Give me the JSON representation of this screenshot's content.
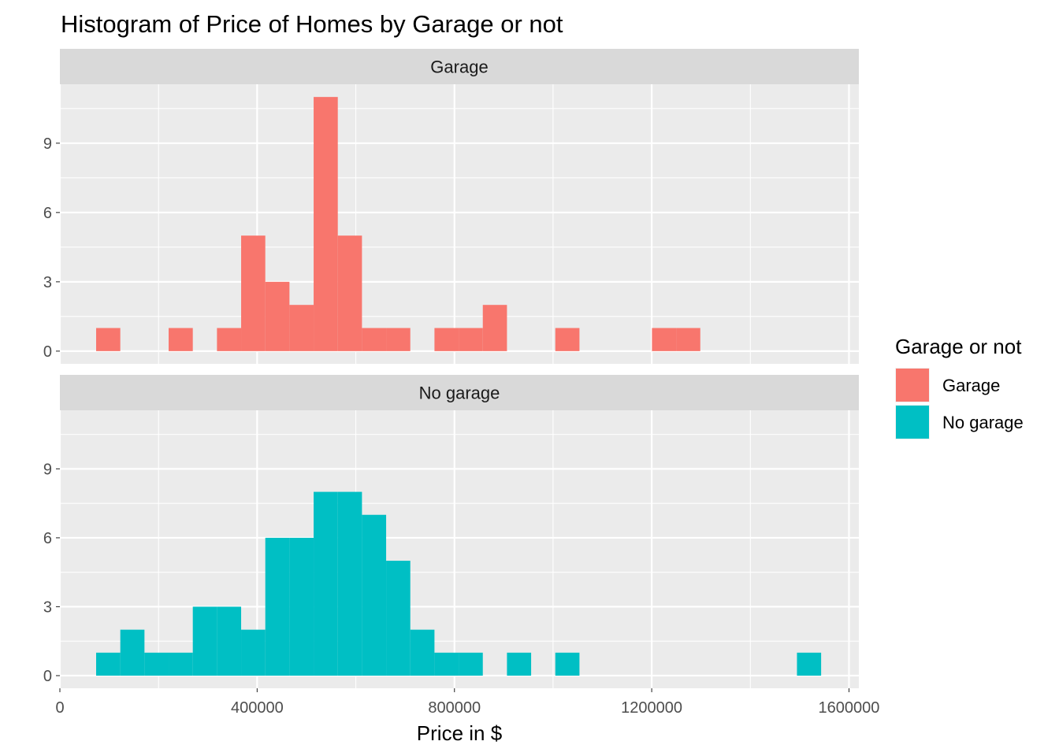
{
  "chart_data": {
    "type": "bar",
    "title": "Histogram of Price of Homes by Garage or not",
    "xlabel": "Price in $",
    "ylabel": "",
    "xlim": [
      0,
      1620000
    ],
    "ylim": [
      -0.55,
      11.55
    ],
    "bin_width": 49000,
    "x_ticks": [
      0,
      400000,
      800000,
      1200000,
      1600000
    ],
    "x_tick_labels": [
      "0",
      "400000",
      "800000",
      "1200000",
      "1600000"
    ],
    "y_ticks": [
      0,
      3,
      6,
      9
    ],
    "y_tick_labels": [
      "0",
      "3",
      "6",
      "9"
    ],
    "grid": true,
    "legend": {
      "title": "Garage or not",
      "position": "right",
      "entries": [
        {
          "label": "Garage",
          "color": "#F8766D"
        },
        {
          "label": "No garage",
          "color": "#00BFC4"
        }
      ]
    },
    "panels": [
      {
        "strip": "Garage",
        "color": "#F8766D",
        "bins": [
          {
            "x": 98000,
            "count": 1
          },
          {
            "x": 245000,
            "count": 1
          },
          {
            "x": 343000,
            "count": 1
          },
          {
            "x": 392000,
            "count": 5
          },
          {
            "x": 441000,
            "count": 3
          },
          {
            "x": 490000,
            "count": 2
          },
          {
            "x": 539000,
            "count": 11
          },
          {
            "x": 588000,
            "count": 5
          },
          {
            "x": 637000,
            "count": 1
          },
          {
            "x": 686000,
            "count": 1
          },
          {
            "x": 784000,
            "count": 1
          },
          {
            "x": 833000,
            "count": 1
          },
          {
            "x": 882000,
            "count": 2
          },
          {
            "x": 1029000,
            "count": 1
          },
          {
            "x": 1225000,
            "count": 1
          },
          {
            "x": 1274000,
            "count": 1
          }
        ]
      },
      {
        "strip": "No garage",
        "color": "#00BFC4",
        "bins": [
          {
            "x": 98000,
            "count": 1
          },
          {
            "x": 147000,
            "count": 2
          },
          {
            "x": 196000,
            "count": 1
          },
          {
            "x": 245000,
            "count": 1
          },
          {
            "x": 294000,
            "count": 3
          },
          {
            "x": 343000,
            "count": 3
          },
          {
            "x": 392000,
            "count": 2
          },
          {
            "x": 441000,
            "count": 6
          },
          {
            "x": 490000,
            "count": 6
          },
          {
            "x": 539000,
            "count": 8
          },
          {
            "x": 588000,
            "count": 8
          },
          {
            "x": 637000,
            "count": 7
          },
          {
            "x": 686000,
            "count": 5
          },
          {
            "x": 735000,
            "count": 2
          },
          {
            "x": 784000,
            "count": 1
          },
          {
            "x": 833000,
            "count": 1
          },
          {
            "x": 931000,
            "count": 1
          },
          {
            "x": 1029000,
            "count": 1
          },
          {
            "x": 1519000,
            "count": 1
          }
        ]
      }
    ]
  }
}
